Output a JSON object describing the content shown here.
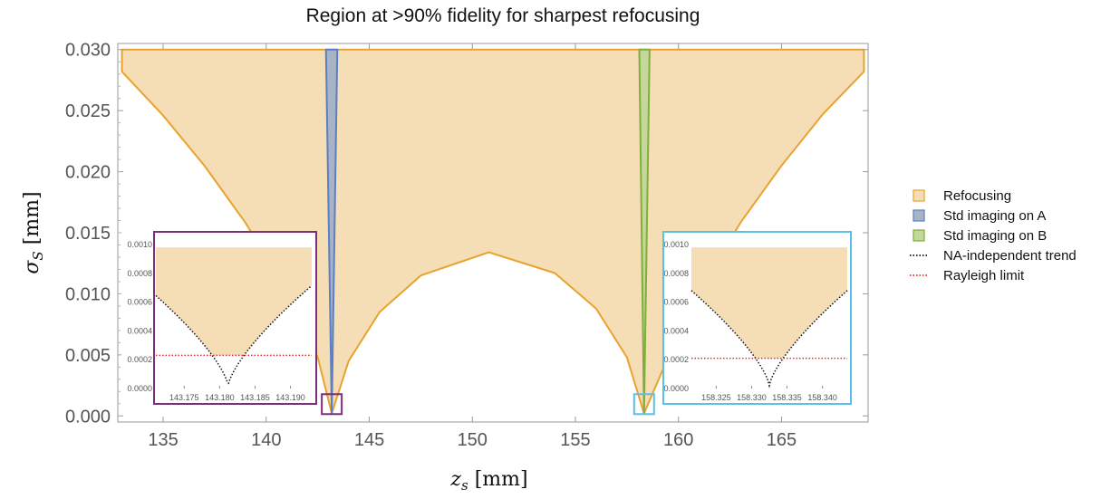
{
  "chart_data": {
    "type": "area",
    "title": "Region at >90% fidelity for sharpest refocusing",
    "xlabel": "z_s [mm]",
    "ylabel": "σ_S [mm]",
    "xlim": [
      132.8,
      169.2
    ],
    "ylim": [
      -0.0005,
      0.0305
    ],
    "x_ticks": [
      135,
      140,
      145,
      150,
      155,
      160,
      165
    ],
    "y_ticks": [
      "0.000",
      "0.005",
      "0.010",
      "0.015",
      "0.020",
      "0.025",
      "0.030"
    ],
    "grid": false,
    "legend_position": "right",
    "legend": [
      {
        "label": "Refocusing",
        "kind": "patch",
        "color": "#f5ddb6",
        "edge": "#e8a32e"
      },
      {
        "label": "Std imaging on A",
        "kind": "patch",
        "color": "#a9b3c6",
        "edge": "#5b7fc4"
      },
      {
        "label": "Std imaging on B",
        "kind": "patch",
        "color": "#c6d79b",
        "edge": "#7fae3a"
      },
      {
        "label": "NA-independent trend",
        "kind": "line",
        "color": "#111111"
      },
      {
        "label": "Rayleigh limit",
        "kind": "line",
        "color": "#e03030"
      }
    ],
    "refocusing_boundary": {
      "top": 0.03,
      "left_edge": [
        [
          133.0,
          0.0282
        ],
        [
          135.0,
          0.0246
        ],
        [
          137.0,
          0.0205
        ],
        [
          139.0,
          0.0158
        ],
        [
          141.0,
          0.0103
        ],
        [
          142.5,
          0.0048
        ],
        [
          143.18,
          0.0002
        ]
      ],
      "arch": [
        [
          143.18,
          0.0002
        ],
        [
          144.0,
          0.0045
        ],
        [
          145.5,
          0.0085
        ],
        [
          147.5,
          0.0115
        ],
        [
          150.8,
          0.0134
        ],
        [
          154.0,
          0.0117
        ],
        [
          156.0,
          0.0088
        ],
        [
          157.5,
          0.0048
        ],
        [
          158.33,
          0.0002
        ]
      ],
      "right_edge": [
        [
          158.33,
          0.0002
        ],
        [
          159.5,
          0.0048
        ],
        [
          161.0,
          0.0102
        ],
        [
          163.0,
          0.0158
        ],
        [
          165.0,
          0.0205
        ],
        [
          167.0,
          0.0247
        ],
        [
          169.0,
          0.0282
        ]
      ]
    },
    "std_imaging_A": {
      "x": [
        142.9,
        143.45
      ],
      "tip": [
        143.18,
        0.0002
      ],
      "top": 0.03
    },
    "std_imaging_B": {
      "x": [
        158.1,
        158.6
      ],
      "tip": [
        158.33,
        0.0002
      ],
      "top": 0.03
    },
    "insets": [
      {
        "name": "A",
        "box_color": "#7b2d7e",
        "xlim": [
          143.171,
          143.193
        ],
        "ylim": [
          0,
          0.00105
        ],
        "x_ticks": [
          "143.175",
          "143.180",
          "143.185",
          "143.190"
        ],
        "y_ticks": [
          "0.0000",
          "0.0002",
          "0.0004",
          "0.0006",
          "0.0008",
          "0.0010"
        ],
        "center": 143.1812,
        "rayleigh": 0.00023,
        "trend_min": 2e-05,
        "trend_at_edge": 0.00068,
        "region_floor": 0.00023
      },
      {
        "name": "B",
        "box_color": "#5bc0e8",
        "xlim": [
          158.3215,
          158.3435
        ],
        "ylim": [
          0,
          0.00105
        ],
        "x_ticks": [
          "158.325",
          "158.330",
          "158.335",
          "158.340"
        ],
        "y_ticks": [
          "0.0000",
          "0.0002",
          "0.0004",
          "0.0006",
          "0.0008",
          "0.0010"
        ],
        "center": 158.3325,
        "rayleigh": 0.00021,
        "trend_min": 2e-05,
        "trend_at_edge": 0.00068,
        "region_floor": 0.00021
      }
    ]
  }
}
